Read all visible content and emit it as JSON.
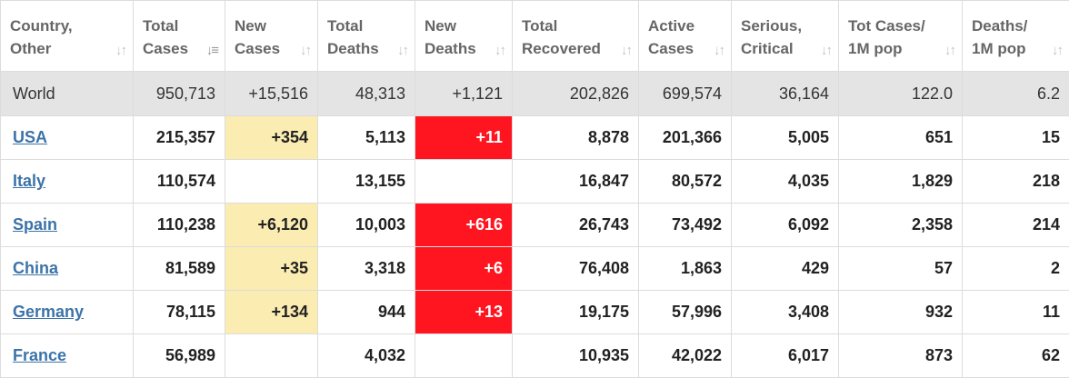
{
  "headers": [
    {
      "line1": "Country,",
      "line2": "Other"
    },
    {
      "line1": "Total",
      "line2": "Cases"
    },
    {
      "line1": "New",
      "line2": "Cases"
    },
    {
      "line1": "Total",
      "line2": "Deaths"
    },
    {
      "line1": "New",
      "line2": "Deaths"
    },
    {
      "line1": "Total",
      "line2": "Recovered"
    },
    {
      "line1": "Active",
      "line2": "Cases"
    },
    {
      "line1": "Serious,",
      "line2": "Critical"
    },
    {
      "line1": "Tot Cases/",
      "line2": "1M pop"
    },
    {
      "line1": "Deaths/",
      "line2": "1M pop"
    }
  ],
  "sort": {
    "column": "Total Cases",
    "direction": "descending",
    "icon": "sort-desc-icon"
  },
  "colors": {
    "new_cases_highlight": "#fbecb2",
    "new_deaths_highlight": "#ff1520",
    "world_row_bg": "#e4e4e4",
    "link": "#3c73a8"
  },
  "rows": [
    {
      "name": "World",
      "total_cases": "950,713",
      "new_cases": "+15,516",
      "total_deaths": "48,313",
      "new_deaths": "+1,121",
      "total_recovered": "202,826",
      "active_cases": "699,574",
      "serious_critical": "36,164",
      "tot_cases_1m": "122.0",
      "deaths_1m": "6.2"
    },
    {
      "name": "USA",
      "total_cases": "215,357",
      "new_cases": "+354",
      "total_deaths": "5,113",
      "new_deaths": "+11",
      "total_recovered": "8,878",
      "active_cases": "201,366",
      "serious_critical": "5,005",
      "tot_cases_1m": "651",
      "deaths_1m": "15"
    },
    {
      "name": "Italy",
      "total_cases": "110,574",
      "new_cases": "",
      "total_deaths": "13,155",
      "new_deaths": "",
      "total_recovered": "16,847",
      "active_cases": "80,572",
      "serious_critical": "4,035",
      "tot_cases_1m": "1,829",
      "deaths_1m": "218"
    },
    {
      "name": "Spain",
      "total_cases": "110,238",
      "new_cases": "+6,120",
      "total_deaths": "10,003",
      "new_deaths": "+616",
      "total_recovered": "26,743",
      "active_cases": "73,492",
      "serious_critical": "6,092",
      "tot_cases_1m": "2,358",
      "deaths_1m": "214"
    },
    {
      "name": "China",
      "total_cases": "81,589",
      "new_cases": "+35",
      "total_deaths": "3,318",
      "new_deaths": "+6",
      "total_recovered": "76,408",
      "active_cases": "1,863",
      "serious_critical": "429",
      "tot_cases_1m": "57",
      "deaths_1m": "2"
    },
    {
      "name": "Germany",
      "total_cases": "78,115",
      "new_cases": "+134",
      "total_deaths": "944",
      "new_deaths": "+13",
      "total_recovered": "19,175",
      "active_cases": "57,996",
      "serious_critical": "3,408",
      "tot_cases_1m": "932",
      "deaths_1m": "11"
    },
    {
      "name": "France",
      "total_cases": "56,989",
      "new_cases": "",
      "total_deaths": "4,032",
      "new_deaths": "",
      "total_recovered": "10,935",
      "active_cases": "42,022",
      "serious_critical": "6,017",
      "tot_cases_1m": "873",
      "deaths_1m": "62"
    }
  ]
}
